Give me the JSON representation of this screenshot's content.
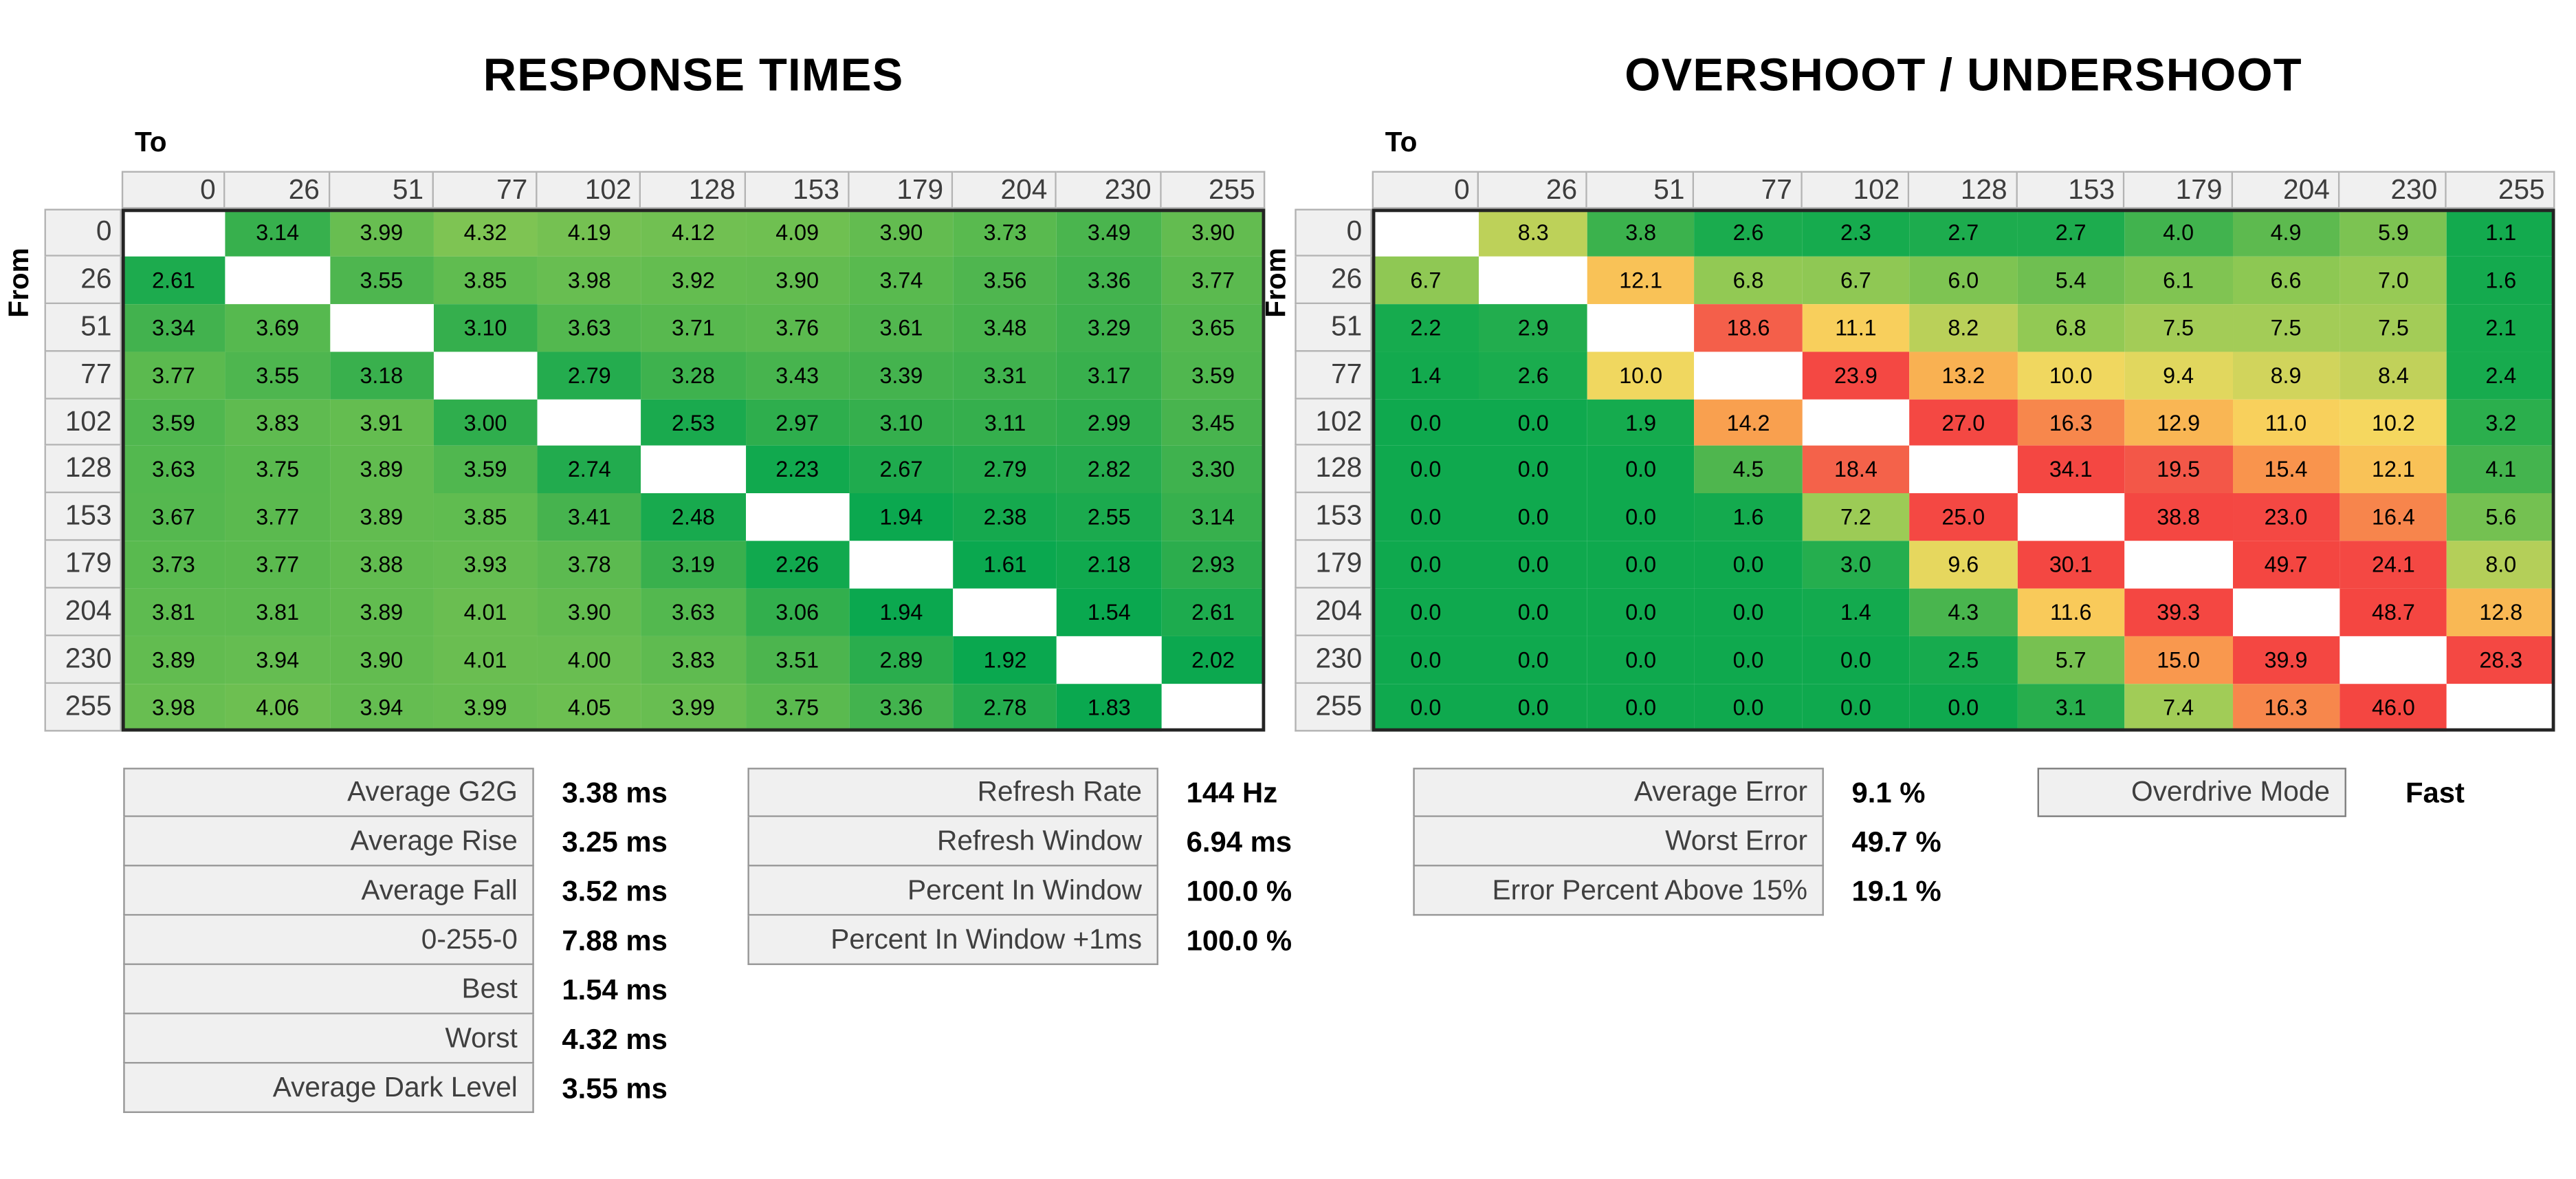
{
  "axis": {
    "to_label": "To",
    "from_label": "From"
  },
  "chart_data": [
    {
      "type": "heatmap",
      "title": "RESPONSE TIMES",
      "unit": "ms",
      "xlabel": "To",
      "ylabel": "From",
      "categories": [
        0,
        26,
        51,
        77,
        102,
        128,
        153,
        179,
        204,
        230,
        255
      ],
      "decimals": 2,
      "rows": [
        [
          null,
          3.14,
          3.99,
          4.32,
          4.19,
          4.12,
          4.09,
          3.9,
          3.73,
          3.49,
          3.9
        ],
        [
          2.61,
          null,
          3.55,
          3.85,
          3.98,
          3.92,
          3.9,
          3.74,
          3.56,
          3.36,
          3.77
        ],
        [
          3.34,
          3.69,
          null,
          3.1,
          3.63,
          3.71,
          3.76,
          3.61,
          3.48,
          3.29,
          3.65
        ],
        [
          3.77,
          3.55,
          3.18,
          null,
          2.79,
          3.28,
          3.43,
          3.39,
          3.31,
          3.17,
          3.59
        ],
        [
          3.59,
          3.83,
          3.91,
          3.0,
          null,
          2.53,
          2.97,
          3.1,
          3.11,
          2.99,
          3.45
        ],
        [
          3.63,
          3.75,
          3.89,
          3.59,
          2.74,
          null,
          2.23,
          2.67,
          2.79,
          2.82,
          3.3
        ],
        [
          3.67,
          3.77,
          3.89,
          3.85,
          3.41,
          2.48,
          null,
          1.94,
          2.38,
          2.55,
          3.14
        ],
        [
          3.73,
          3.77,
          3.88,
          3.93,
          3.78,
          3.19,
          2.26,
          null,
          1.61,
          2.18,
          2.93
        ],
        [
          3.81,
          3.81,
          3.89,
          4.01,
          3.9,
          3.63,
          3.06,
          1.94,
          null,
          1.54,
          2.61
        ],
        [
          3.89,
          3.94,
          3.9,
          4.01,
          4.0,
          3.83,
          3.51,
          2.89,
          1.92,
          null,
          2.02
        ],
        [
          3.98,
          4.06,
          3.94,
          3.99,
          4.05,
          3.99,
          3.75,
          3.36,
          2.78,
          1.83,
          null
        ]
      ],
      "color_stops": [
        [
          0.0,
          "#0aa84f"
        ],
        [
          1.9,
          "#0aa84f"
        ],
        [
          2.3,
          "#12a94e"
        ],
        [
          2.7,
          "#20ab4e"
        ],
        [
          3.0,
          "#2fae4d"
        ],
        [
          3.4,
          "#45b34e"
        ],
        [
          3.7,
          "#57b94f"
        ],
        [
          4.0,
          "#69be51"
        ],
        [
          4.4,
          "#83c553"
        ],
        [
          10.0,
          "#f5d95f"
        ]
      ]
    },
    {
      "type": "heatmap",
      "title": "OVERSHOOT / UNDERSHOOT",
      "unit": "%",
      "xlabel": "To",
      "ylabel": "From",
      "categories": [
        0,
        26,
        51,
        77,
        102,
        128,
        153,
        179,
        204,
        230,
        255
      ],
      "decimals": 1,
      "rows": [
        [
          null,
          8.3,
          3.8,
          2.6,
          2.3,
          2.7,
          2.7,
          4.0,
          4.9,
          5.9,
          1.1
        ],
        [
          6.7,
          null,
          12.1,
          6.8,
          6.7,
          6.0,
          5.4,
          6.1,
          6.6,
          7.0,
          1.6
        ],
        [
          2.2,
          2.9,
          null,
          18.6,
          11.1,
          8.2,
          6.8,
          7.5,
          7.5,
          7.5,
          2.1
        ],
        [
          1.4,
          2.6,
          10.0,
          null,
          23.9,
          13.2,
          10.0,
          9.4,
          8.9,
          8.4,
          2.4
        ],
        [
          0.0,
          0.0,
          1.9,
          14.2,
          null,
          27.0,
          16.3,
          12.9,
          11.0,
          10.2,
          3.2
        ],
        [
          0.0,
          0.0,
          0.0,
          4.5,
          18.4,
          null,
          34.1,
          19.5,
          15.4,
          12.1,
          4.1
        ],
        [
          0.0,
          0.0,
          0.0,
          1.6,
          7.2,
          25.0,
          null,
          38.8,
          23.0,
          16.4,
          5.6
        ],
        [
          0.0,
          0.0,
          0.0,
          0.0,
          3.0,
          9.6,
          30.1,
          null,
          49.7,
          24.1,
          8.0
        ],
        [
          0.0,
          0.0,
          0.0,
          0.0,
          1.4,
          4.3,
          11.6,
          39.3,
          null,
          48.7,
          12.8
        ],
        [
          0.0,
          0.0,
          0.0,
          0.0,
          0.0,
          2.5,
          5.7,
          15.0,
          39.9,
          null,
          28.3
        ],
        [
          0.0,
          0.0,
          0.0,
          0.0,
          0.0,
          0.0,
          3.1,
          7.4,
          16.3,
          46.0,
          null
        ]
      ],
      "color_stops": [
        [
          0.0,
          "#0fa94e"
        ],
        [
          2.5,
          "#17ab4e"
        ],
        [
          3.5,
          "#33b04d"
        ],
        [
          4.5,
          "#4fb64e"
        ],
        [
          5.5,
          "#72c051"
        ],
        [
          6.5,
          "#8ac753"
        ],
        [
          7.5,
          "#a3cc57"
        ],
        [
          8.5,
          "#c4d25a"
        ],
        [
          9.5,
          "#e4d75e"
        ],
        [
          10.3,
          "#f7d75f"
        ],
        [
          11.5,
          "#f9cb5a"
        ],
        [
          12.8,
          "#f9b854"
        ],
        [
          14.0,
          "#f9a24f"
        ],
        [
          15.5,
          "#f9934d"
        ],
        [
          17.0,
          "#f67c4b"
        ],
        [
          18.5,
          "#f4604a"
        ],
        [
          20.0,
          "#f35347"
        ],
        [
          23.0,
          "#f44843"
        ],
        [
          60.0,
          "#f44540"
        ]
      ]
    }
  ],
  "stats_panels": [
    {
      "id": "response-summary",
      "rows": [
        {
          "label": "Average G2G",
          "value": "3.38",
          "unit": "ms"
        },
        {
          "label": "Average Rise",
          "value": "3.25",
          "unit": "ms"
        },
        {
          "label": "Average Fall",
          "value": "3.52",
          "unit": "ms"
        },
        {
          "label": "0-255-0",
          "value": "7.88",
          "unit": "ms"
        },
        {
          "label": "Best",
          "value": "1.54",
          "unit": "ms"
        },
        {
          "label": "Worst",
          "value": "4.32",
          "unit": "ms"
        },
        {
          "label": "Average Dark Level",
          "value": "3.55",
          "unit": "ms"
        }
      ]
    },
    {
      "id": "refresh-summary",
      "rows": [
        {
          "label": "Refresh Rate",
          "value": "144",
          "unit": "Hz"
        },
        {
          "label": "Refresh Window",
          "value": "6.94",
          "unit": "ms"
        },
        {
          "label": "Percent In Window",
          "value": "100.0",
          "unit": "%"
        },
        {
          "label": "Percent In Window +1ms",
          "value": "100.0",
          "unit": "%"
        }
      ]
    },
    {
      "id": "error-summary",
      "rows": [
        {
          "label": "Average Error",
          "value": "9.1",
          "unit": "%"
        },
        {
          "label": "Worst Error",
          "value": "49.7",
          "unit": "%"
        },
        {
          "label": "Error Percent Above 15%",
          "value": "19.1",
          "unit": "%"
        }
      ]
    }
  ],
  "overdrive": {
    "label": "Overdrive Mode",
    "value": "Fast"
  },
  "colors": {
    "header_bg": "#f0f0f0",
    "header_border": "#b3b3b3",
    "header_text": "#3d3d3d",
    "data_outline": "#242424",
    "diagonal_cell": "#ffffff",
    "green_min": "#0fa94e",
    "yellow_mid": "#f7d75f",
    "red_max": "#f44540"
  }
}
